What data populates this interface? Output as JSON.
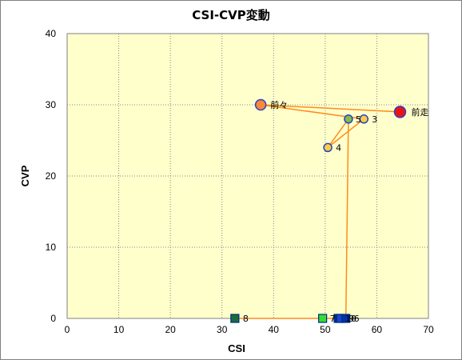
{
  "chart_data": {
    "type": "scatter",
    "title": "CSI-CVP変動",
    "xlabel": "CSI",
    "ylabel": "CVP",
    "xlim": [
      0,
      70
    ],
    "ylim": [
      0,
      40
    ],
    "x_ticks": [
      0,
      10,
      20,
      30,
      40,
      50,
      60,
      70
    ],
    "y_ticks": [
      0,
      10,
      20,
      30,
      40
    ],
    "grid": true,
    "plot_background": "#ffffcc",
    "line_color": "#ff8c1a",
    "path": [
      {
        "label": "前走",
        "x": 64.5,
        "y": 29
      },
      {
        "label": "前々",
        "x": 37.5,
        "y": 30
      },
      {
        "label": "3",
        "x": 57.5,
        "y": 28
      },
      {
        "label": "4",
        "x": 50.5,
        "y": 24
      },
      {
        "label": "5",
        "x": 54.5,
        "y": 28
      },
      {
        "label": "6",
        "x": 54,
        "y": 0
      },
      {
        "label": "7",
        "x": 49.5,
        "y": 0
      },
      {
        "label": "8",
        "x": 32.5,
        "y": 0
      },
      {
        "label": "9",
        "x": 53,
        "y": 0
      },
      {
        "label": "10",
        "x": 52.5,
        "y": 0
      }
    ],
    "markers": [
      {
        "label": "8",
        "x": 32.5,
        "y": 0,
        "shape": "square",
        "fill": "#1a6e3a",
        "stroke": "#002a80",
        "label_dx": 10,
        "label_dy": 4
      },
      {
        "label": "7",
        "x": 49.5,
        "y": 0,
        "shape": "square",
        "fill": "#33dd33",
        "stroke": "#002a80",
        "label_dx": 9,
        "label_dy": 4
      },
      {
        "label": "10",
        "x": 52.5,
        "y": 0,
        "shape": "square",
        "fill": "#002a80",
        "stroke": "#002a80",
        "label_dx": 9,
        "label_dy": 4
      },
      {
        "label": "9",
        "x": 53,
        "y": 0,
        "shape": "square",
        "fill": "#1a44cc",
        "stroke": "#002a80",
        "label_dx": 10,
        "label_dy": 4
      },
      {
        "label": "6",
        "x": 54,
        "y": 0,
        "shape": "square",
        "fill": "#0033aa",
        "stroke": "#002a80",
        "label_dx": 10,
        "label_dy": 4
      },
      {
        "label": "4",
        "x": 50.5,
        "y": 24,
        "shape": "circle",
        "r": 5,
        "fill": "#ffcc44",
        "stroke": "#2244cc",
        "label_dx": 10,
        "label_dy": 4
      },
      {
        "label": "3",
        "x": 57.5,
        "y": 28,
        "shape": "circle",
        "r": 5,
        "fill": "#ffcc44",
        "stroke": "#2244cc",
        "label_dx": 10,
        "label_dy": 4
      },
      {
        "label": "5",
        "x": 54.5,
        "y": 28,
        "shape": "circle",
        "r": 5,
        "fill": "#88bb44",
        "stroke": "#2244cc",
        "label_dx": 9,
        "label_dy": 4
      },
      {
        "label": "前々",
        "x": 37.5,
        "y": 30,
        "shape": "circle",
        "r": 6.5,
        "fill": "#ff8833",
        "stroke": "#2244cc",
        "label_dx": 12,
        "label_dy": 4
      },
      {
        "label": "前走",
        "x": 64.5,
        "y": 29,
        "shape": "circle",
        "r": 7,
        "fill": "#ee1111",
        "stroke": "#2244cc",
        "label_dx": 14,
        "label_dy": 4
      }
    ]
  }
}
